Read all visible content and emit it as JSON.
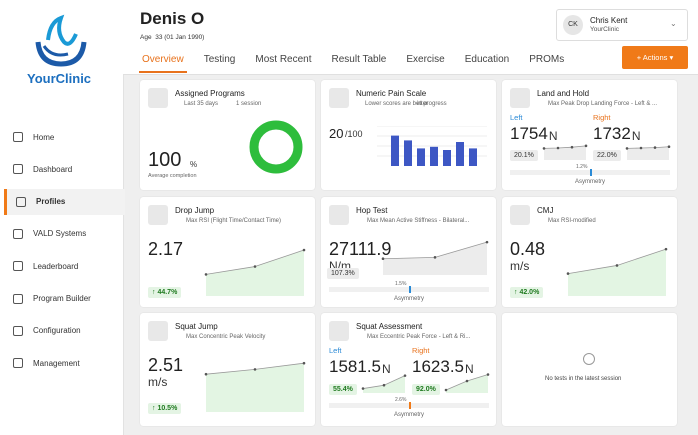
{
  "sidebar": {
    "logo": "YourClinic",
    "nav": [
      "Home",
      "Dashboard",
      "Profiles",
      "VALD Systems",
      "Leaderboard",
      "Program Builder",
      "Configuration",
      "Management"
    ],
    "active": 2
  },
  "header": {
    "name": "Denis O",
    "age_label": "Age",
    "age": "33 (01 Jan 1990)",
    "user": {
      "initials": "CK",
      "name": "Chris Kent",
      "org": "YourClinic"
    },
    "tabs": [
      "Overview",
      "Testing",
      "Most Recent",
      "Result Table",
      "Exercise",
      "Education",
      "PROMs"
    ],
    "active_tab": 0,
    "action": "Actions"
  },
  "cards": [
    {
      "kind": "program",
      "title": "Assigned Programs",
      "meta": [
        "Last 35 days",
        "1 session"
      ],
      "value": "100",
      "unit": "%",
      "caption": "Average completion",
      "donut": 100
    },
    {
      "kind": "pain",
      "title": "Numeric Pain Scale",
      "meta": [
        "Lower scores are better",
        "in progress"
      ],
      "value": "20",
      "unit": "/100",
      "bars": {
        "values": [
          38,
          32,
          22,
          24,
          20,
          30,
          22
        ],
        "ylim": [
          0,
          50
        ]
      }
    },
    {
      "kind": "dual",
      "title": "Land and Hold",
      "subtitle": "Max Peak Drop Landing Force - Left & ...",
      "sides": [
        {
          "label": "Left",
          "value": "1754",
          "unit": "N",
          "badge": "20.1%",
          "trend": {
            "values": [
              1690,
              1700,
              1720,
              1754
            ],
            "ylim": [
              1400,
              1900
            ]
          }
        },
        {
          "label": "Right",
          "value": "1732",
          "unit": "N",
          "badge": "22.0%",
          "trend": {
            "values": [
              1690,
              1700,
              1710,
              1732
            ],
            "ylim": [
              1400,
              1900
            ]
          }
        }
      ],
      "asymmetry": "1.2%",
      "asymmetry_label": "Asymmetry"
    },
    {
      "kind": "single",
      "title": "Drop Jump",
      "subtitle": "Max RSI (Flight Time/Contact Time)",
      "value": "2.17",
      "badge": "44.7%",
      "trend": {
        "values": [
          1.55,
          1.75,
          2.17
        ],
        "ylim": [
          1.0,
          2.4
        ]
      }
    },
    {
      "kind": "single",
      "title": "Hop Test",
      "subtitle": "Max Mean Active Stiffness - Bilateral...",
      "value": "27111.9",
      "unit": "N/m",
      "badge": "107.3%",
      "badge_neutral": true,
      "trend": {
        "values": [
          21000,
          21500,
          27111.9
        ],
        "ylim": [
          15000,
          29000
        ]
      },
      "asymmetry": "1.5%",
      "asymmetry_label": "Asymmetry"
    },
    {
      "kind": "single",
      "title": "CMJ",
      "subtitle": "Max RSI-modified",
      "value": "0.48",
      "unit": "m/s",
      "badge": "42.0%",
      "trend": {
        "values": [
          0.36,
          0.4,
          0.48
        ],
        "ylim": [
          0.25,
          0.52
        ]
      }
    },
    {
      "kind": "single",
      "title": "Squat Jump",
      "subtitle": "Max Concentric Peak Velocity",
      "value": "2.51",
      "unit": "m/s",
      "badge": "10.5%",
      "trend": {
        "values": [
          2.35,
          2.42,
          2.51
        ],
        "ylim": [
          1.8,
          2.6
        ]
      }
    },
    {
      "kind": "dual",
      "title": "Squat Assessment",
      "subtitle": "Max Eccentric Peak Force - Left & Ri...",
      "sides": [
        {
          "label": "Left",
          "value": "1581.5",
          "unit": "N",
          "badge": "55.4%",
          "trend": {
            "values": [
              1000,
              1150,
              1581.5
            ],
            "ylim": [
              800,
              1700
            ]
          }
        },
        {
          "label": "Right",
          "value": "1623.5",
          "unit": "N",
          "badge": "92.0%",
          "trend": {
            "values": [
              850,
              1300,
              1623.5
            ],
            "ylim": [
              700,
              1700
            ]
          }
        }
      ],
      "asymmetry": "2.6%",
      "asymmetry_label": "Asymmetry"
    },
    {
      "kind": "empty",
      "message": "No tests in the latest session"
    }
  ]
}
